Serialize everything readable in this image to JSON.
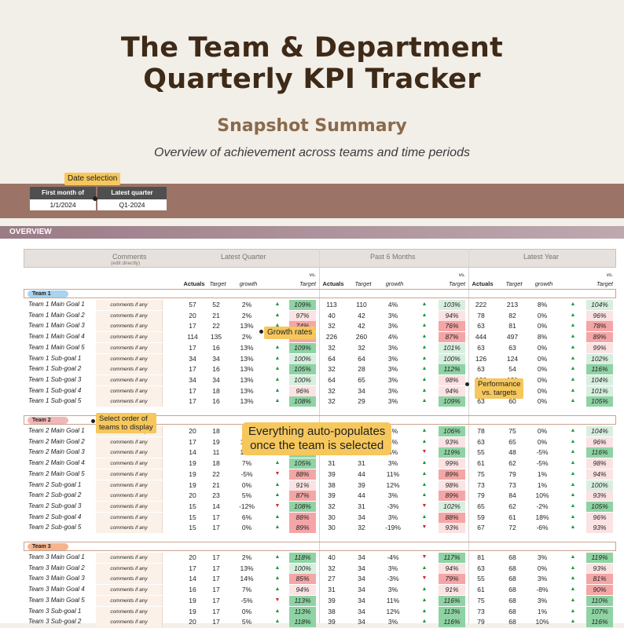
{
  "title_line1": "The Team & Department",
  "title_line2": "Quarterly KPI Tracker",
  "subtitle": "Snapshot Summary",
  "tagline": "Overview of achievement across teams and time periods",
  "callouts": {
    "date": "Date selection",
    "growth": "Growth rates",
    "order1": "Select order of",
    "order2": "teams to display",
    "auto1": "Everything auto-populates",
    "auto2": "once the team is selected",
    "perf1": "Performance",
    "perf2": "vs. targets"
  },
  "date_box": {
    "h1": "First month of",
    "h2": "Latest quarter",
    "v1": "1/1/2024",
    "v2": "Q1-2024"
  },
  "overview_label": "OVERVIEW",
  "section_headers": {
    "comments": "Comments",
    "comments_sub": "(edit directly)",
    "q": "Latest Quarter",
    "m6": "Past 6 Months",
    "yr": "Latest Year"
  },
  "columns": {
    "actuals": "Actuals",
    "target": "Target",
    "growth": "growth",
    "vs": "vs.",
    "target2": "Target"
  },
  "comment_text": "comments if any",
  "groups": [
    {
      "name": "Team 1",
      "color": "#a9d3ee",
      "rows": [
        [
          "Team 1 Main Goal 1",
          "57",
          "52",
          "2%",
          "u",
          "109%",
          "113",
          "110",
          "4%",
          "u",
          "103%",
          "222",
          "213",
          "8%",
          "u",
          "104%"
        ],
        [
          "Team 1 Main Goal 2",
          "20",
          "21",
          "2%",
          "u",
          "97%",
          "40",
          "42",
          "3%",
          "u",
          "94%",
          "78",
          "82",
          "0%",
          "u",
          "96%"
        ],
        [
          "Team 1 Main Goal 3",
          "17",
          "22",
          "13%",
          "u",
          "74%",
          "32",
          "42",
          "3%",
          "u",
          "76%",
          "63",
          "81",
          "0%",
          "u",
          "78%"
        ],
        [
          "Team 1 Main Goal 4",
          "114",
          "135",
          "2%",
          "u",
          "84%",
          "226",
          "260",
          "4%",
          "u",
          "87%",
          "444",
          "497",
          "8%",
          "u",
          "89%"
        ],
        [
          "Team 1 Main Goal 5",
          "17",
          "16",
          "13%",
          "u",
          "109%",
          "32",
          "32",
          "3%",
          "u",
          "101%",
          "63",
          "63",
          "0%",
          "u",
          "99%"
        ],
        [
          "Team 1 Sub-goal 1",
          "34",
          "34",
          "13%",
          "u",
          "100%",
          "64",
          "64",
          "3%",
          "u",
          "100%",
          "126",
          "124",
          "0%",
          "u",
          "102%"
        ],
        [
          "Team 1 Sub-goal 2",
          "17",
          "16",
          "13%",
          "u",
          "105%",
          "32",
          "28",
          "3%",
          "u",
          "112%",
          "63",
          "54",
          "0%",
          "u",
          "116%"
        ],
        [
          "Team 1 Sub-goal 3",
          "34",
          "34",
          "13%",
          "u",
          "100%",
          "64",
          "65",
          "3%",
          "u",
          "98%",
          "126",
          "121",
          "0%",
          "u",
          "104%"
        ],
        [
          "Team 1 Sub-goal 4",
          "17",
          "18",
          "13%",
          "u",
          "96%",
          "32",
          "34",
          "3%",
          "u",
          "94%",
          "63",
          "62",
          "0%",
          "u",
          "101%"
        ],
        [
          "Team 1 Sub-goal 5",
          "17",
          "16",
          "13%",
          "u",
          "108%",
          "32",
          "29",
          "3%",
          "u",
          "109%",
          "63",
          "60",
          "0%",
          "u",
          "105%"
        ]
      ]
    },
    {
      "name": "Team 2",
      "color": "#f3b6b6",
      "rows": [
        [
          "Team 2 Main Goal 1",
          "20",
          "18",
          "2%",
          "u",
          "111%",
          "38",
          "36",
          "5%",
          "u",
          "106%",
          "78",
          "75",
          "0%",
          "u",
          "104%"
        ],
        [
          "Team 2 Main Goal 2",
          "17",
          "19",
          "11%",
          "u",
          "89%",
          "33",
          "35",
          "6%",
          "u",
          "93%",
          "63",
          "65",
          "0%",
          "u",
          "96%"
        ],
        [
          "Team 2 Main Goal 3",
          "14",
          "11",
          "14%",
          "u",
          "127%",
          "26",
          "22",
          "8%",
          "d",
          "119%",
          "55",
          "48",
          "-5%",
          "u",
          "116%"
        ],
        [
          "Team 2 Main Goal 4",
          "19",
          "18",
          "7%",
          "u",
          "105%",
          "31",
          "31",
          "3%",
          "u",
          "99%",
          "61",
          "62",
          "-5%",
          "u",
          "98%"
        ],
        [
          "Team 2 Main Goal 5",
          "19",
          "22",
          "-5%",
          "d",
          "88%",
          "39",
          "44",
          "11%",
          "u",
          "89%",
          "75",
          "79",
          "1%",
          "u",
          "94%"
        ],
        [
          "Team 2 Sub-goal 1",
          "19",
          "21",
          "0%",
          "u",
          "91%",
          "38",
          "39",
          "12%",
          "u",
          "98%",
          "73",
          "73",
          "1%",
          "u",
          "100%"
        ],
        [
          "Team 2 Sub-goal 2",
          "20",
          "23",
          "5%",
          "u",
          "87%",
          "39",
          "44",
          "3%",
          "u",
          "89%",
          "79",
          "84",
          "10%",
          "u",
          "93%"
        ],
        [
          "Team 2 Sub-goal 3",
          "15",
          "14",
          "-12%",
          "d",
          "108%",
          "32",
          "31",
          "-3%",
          "d",
          "102%",
          "65",
          "62",
          "-2%",
          "u",
          "105%"
        ],
        [
          "Team 2 Sub-goal 4",
          "15",
          "17",
          "6%",
          "u",
          "88%",
          "30",
          "34",
          "3%",
          "u",
          "88%",
          "59",
          "61",
          "18%",
          "u",
          "96%"
        ],
        [
          "Team 2 Sub-goal 5",
          "15",
          "17",
          "0%",
          "u",
          "89%",
          "30",
          "32",
          "-19%",
          "d",
          "93%",
          "67",
          "72",
          "-6%",
          "u",
          "93%"
        ]
      ]
    },
    {
      "name": "Team 3",
      "color": "#f6b48e",
      "rows": [
        [
          "Team 3 Main Goal 1",
          "20",
          "17",
          "2%",
          "u",
          "118%",
          "40",
          "34",
          "-4%",
          "d",
          "117%",
          "81",
          "68",
          "3%",
          "u",
          "119%"
        ],
        [
          "Team 3 Main Goal 2",
          "17",
          "17",
          "13%",
          "u",
          "100%",
          "32",
          "34",
          "3%",
          "u",
          "94%",
          "63",
          "68",
          "0%",
          "u",
          "93%"
        ],
        [
          "Team 3 Main Goal 3",
          "14",
          "17",
          "14%",
          "u",
          "85%",
          "27",
          "34",
          "-3%",
          "d",
          "79%",
          "55",
          "68",
          "3%",
          "u",
          "81%"
        ],
        [
          "Team 3 Main Goal 4",
          "16",
          "17",
          "7%",
          "u",
          "94%",
          "31",
          "34",
          "3%",
          "u",
          "91%",
          "61",
          "68",
          "-8%",
          "u",
          "90%"
        ],
        [
          "Team 3 Main Goal 5",
          "19",
          "17",
          "-5%",
          "d",
          "113%",
          "39",
          "34",
          "11%",
          "u",
          "116%",
          "75",
          "68",
          "3%",
          "u",
          "110%"
        ],
        [
          "Team 3 Sub-goal 1",
          "19",
          "17",
          "0%",
          "u",
          "113%",
          "38",
          "34",
          "12%",
          "u",
          "113%",
          "73",
          "68",
          "1%",
          "u",
          "107%"
        ],
        [
          "Team 3 Sub-goal 2",
          "20",
          "17",
          "5%",
          "u",
          "118%",
          "39",
          "34",
          "3%",
          "u",
          "116%",
          "79",
          "68",
          "10%",
          "u",
          "116%"
        ]
      ]
    }
  ],
  "colors": {
    "green": "#8fd3a4",
    "red": "#f4a6a6",
    "up": "#1a9a3a",
    "down": "#d12b2b"
  }
}
